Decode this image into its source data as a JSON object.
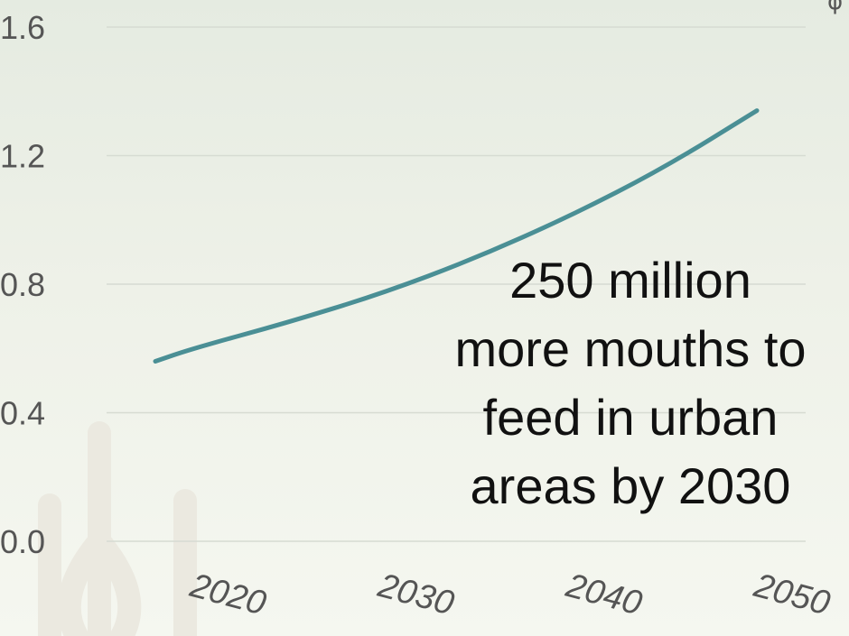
{
  "corner_glyph": "φ",
  "watermark_icon": "drop-icon",
  "chart_data": {
    "type": "line",
    "title": "",
    "xlabel": "",
    "ylabel": "",
    "x": [
      2018,
      2020,
      2025,
      2030,
      2035,
      2040,
      2045,
      2050
    ],
    "series": [
      {
        "values": [
          0.56,
          0.6,
          0.68,
          0.77,
          0.88,
          1.01,
          1.16,
          1.34
        ],
        "color": "#4a8f95"
      }
    ],
    "xticks": [
      2020,
      2030,
      2040,
      2050
    ],
    "yticks": [
      "0.0",
      "0.4",
      "0.8",
      "1.2",
      "1.6"
    ],
    "xlim": [
      2018,
      2050
    ],
    "ylim": [
      0.0,
      1.6
    ],
    "grid": true,
    "annotation": {
      "lines": [
        "250 million",
        "more mouths to",
        "feed in urban",
        "areas by 2030"
      ]
    }
  }
}
